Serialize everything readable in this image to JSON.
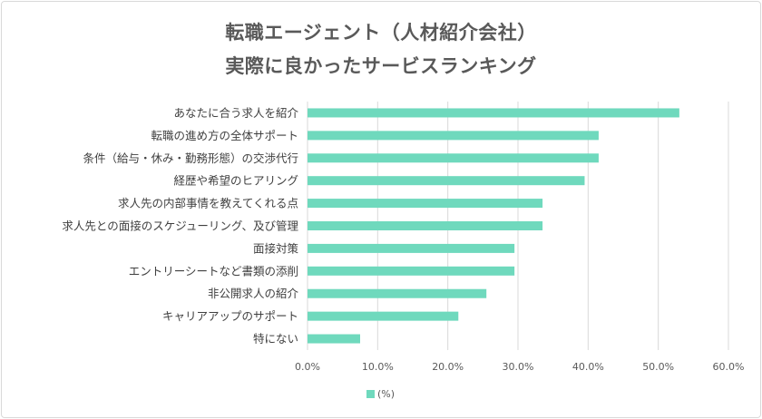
{
  "chart_data": {
    "type": "bar",
    "orientation": "horizontal",
    "title_lines": [
      "転職エージェント（人材紹介会社）",
      "実際に良かったサービスランキング"
    ],
    "categories": [
      "あなたに合う求人を紹介",
      "転職の進め方の全体サポート",
      "条件（給与・休み・勤務形態）の交渉代行",
      "経歴や希望のヒアリング",
      "求人先の内部事情を教えてくれる点",
      "求人先との面接のスケジューリング、及び管理",
      "面接対策",
      "エントリーシートなど書類の添削",
      "非公開求人の紹介",
      "キャリアアップのサポート",
      "特にない"
    ],
    "series": [
      {
        "name": "(%)",
        "values": [
          53.0,
          41.5,
          41.5,
          39.5,
          33.5,
          33.5,
          29.5,
          29.5,
          25.5,
          21.5,
          7.5
        ]
      }
    ],
    "xlim": [
      0,
      60
    ],
    "xticks": [
      "0.0%",
      "10.0%",
      "20.0%",
      "30.0%",
      "40.0%",
      "50.0%",
      "60.0%"
    ],
    "grid": "vertical",
    "legend_position": "bottom",
    "bar_color": "#6fd9bd",
    "grid_color": "#d9d9d9"
  }
}
